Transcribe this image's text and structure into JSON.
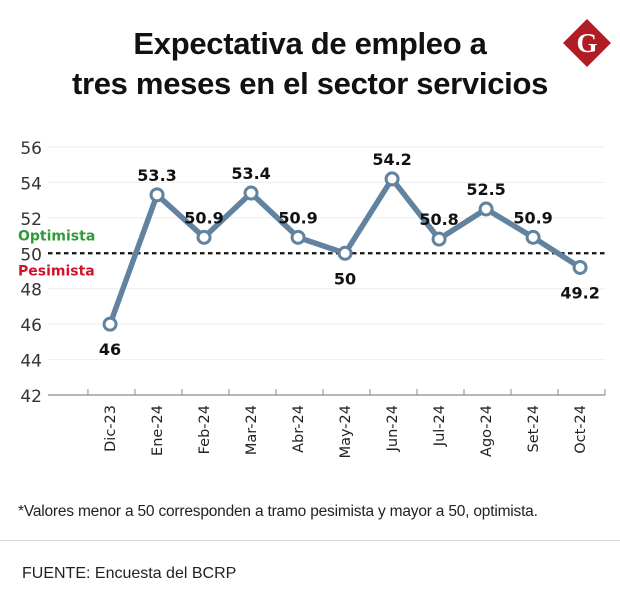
{
  "header": {
    "title_line1": "Expectativa de empleo a",
    "title_line2": "tres meses en el sector servicios",
    "logo_letter": "G",
    "logo_color": "#b01c24"
  },
  "chart_data": {
    "type": "line",
    "title": "Expectativa de empleo a tres meses en el sector servicios",
    "xlabel": "",
    "ylabel": "",
    "categories": [
      "Dic-23",
      "Ene-24",
      "Feb-24",
      "Mar-24",
      "Abr-24",
      "May-24",
      "Jun-24",
      "Jul-24",
      "Ago-24",
      "Set-24",
      "Oct-24"
    ],
    "series": [
      {
        "name": "Expectativa de empleo",
        "values": [
          46,
          53.3,
          50.9,
          53.4,
          50.9,
          50,
          54.2,
          50.8,
          52.5,
          50.9,
          49.2
        ],
        "color": "#6283a0"
      }
    ],
    "data_labels": [
      "46",
      "53.3",
      "50.9",
      "53.4",
      "50.9",
      "50",
      "54.2",
      "50.8",
      "52.5",
      "50.9",
      "49.2"
    ],
    "label_position": [
      "below",
      "above",
      "above",
      "above",
      "above",
      "below",
      "above",
      "above",
      "above",
      "above",
      "below"
    ],
    "ylim": [
      42,
      56
    ],
    "yticks": [
      42,
      44,
      46,
      48,
      50,
      52,
      54,
      56
    ],
    "grid": true,
    "legend": "none",
    "threshold": {
      "value": 50,
      "label_above": "Optimista",
      "label_above_color": "#2e9a3a",
      "label_below": "Pesimista",
      "label_below_color": "#d0142c"
    }
  },
  "footer": {
    "note": "*Valores menor a 50 corresponden a tramo pesimista y mayor a 50, optimista.",
    "source": "FUENTE: Encuesta del BCRP"
  }
}
